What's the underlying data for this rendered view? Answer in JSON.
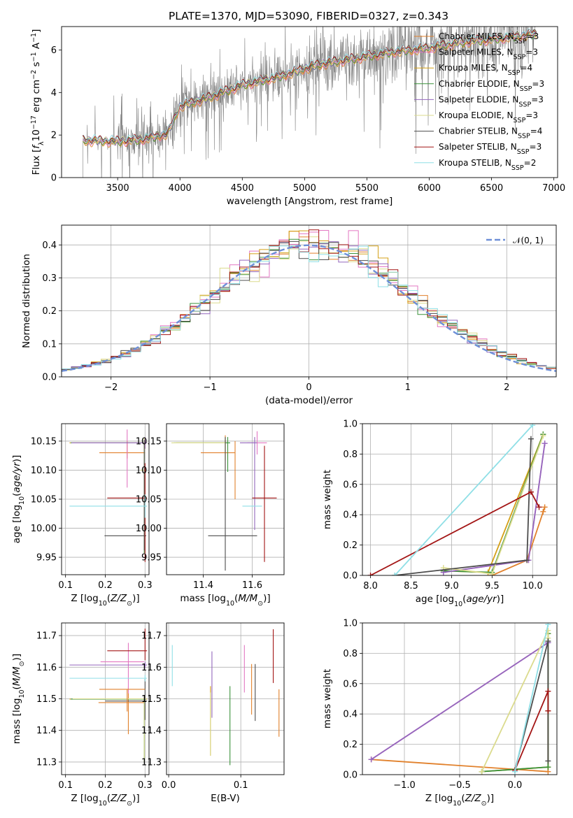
{
  "figure": {
    "title": "PLATE=1370, MJD=53090, FIBERID=0327, z=0.343"
  },
  "colors": {
    "grid": "#b0b0b0",
    "observed": "#808080",
    "models": [
      "#e1812c",
      "#e377c2",
      "#d4a017",
      "#3a923a",
      "#9467bd",
      "#dbdb8d",
      "#4d4d4d",
      "#a31515",
      "#8fdfe6"
    ],
    "normal": "#6e8fd8"
  },
  "chart_data": [
    {
      "id": "spectrum",
      "type": "line",
      "xlabel": "wavelength [Angstrom, rest frame]",
      "ylabel": "Flux [f_λ 10^-17 erg cm^-2 s^-1 A^-1]",
      "xlim": [
        3050,
        7030
      ],
      "ylim": [
        0,
        7.1
      ],
      "xticks": [
        3500,
        4000,
        4500,
        5000,
        5500,
        6000,
        6500,
        7000
      ],
      "yticks": [
        0,
        2,
        4,
        6
      ],
      "grid": false,
      "legend": "top-right",
      "observed_range": [
        3220,
        6860
      ],
      "model_series": [
        {
          "name": "Chabrier MILES, N_SSP=3",
          "label_main": "Chabrier MILES, N",
          "label_sub": "SSP",
          "label_end": "=3"
        },
        {
          "name": "Salpeter MILES, N_SSP=3",
          "label_main": "Salpeter MILES, N",
          "label_sub": "SSP",
          "label_end": "=3"
        },
        {
          "name": "Kroupa MILES, N_SSP=4",
          "label_main": "Kroupa MILES, N",
          "label_sub": "SSP",
          "label_end": "=4"
        },
        {
          "name": "Chabrier ELODIE, N_SSP=3",
          "label_main": "Chabrier ELODIE, N",
          "label_sub": "SSP",
          "label_end": "=3"
        },
        {
          "name": "Salpeter ELODIE, N_SSP=3",
          "label_main": "Salpeter ELODIE, N",
          "label_sub": "SSP",
          "label_end": "=3"
        },
        {
          "name": "Kroupa ELODIE, N_SSP=3",
          "label_main": "Kroupa ELODIE, N",
          "label_sub": "SSP",
          "label_end": "=3"
        },
        {
          "name": "Chabrier STELIB, N_SSP=4",
          "label_main": "Chabrier STELIB, N",
          "label_sub": "SSP",
          "label_end": "=4"
        },
        {
          "name": "Salpeter STELIB, N_SSP=3",
          "label_main": "Salpeter STELIB, N",
          "label_sub": "SSP",
          "label_end": "=3"
        },
        {
          "name": "Kroupa STELIB, N_SSP=2",
          "label_main": "Kroupa STELIB, N",
          "label_sub": "SSP",
          "label_end": "=2"
        }
      ],
      "continuum_knots": [
        [
          3220,
          1.75
        ],
        [
          3500,
          1.7
        ],
        [
          3700,
          1.8
        ],
        [
          3900,
          2.05
        ],
        [
          4000,
          3.35
        ],
        [
          4200,
          3.7
        ],
        [
          4500,
          4.35
        ],
        [
          4800,
          4.75
        ],
        [
          5100,
          5.3
        ],
        [
          5400,
          5.6
        ],
        [
          5700,
          5.9
        ],
        [
          6000,
          6.1
        ],
        [
          6300,
          6.4
        ],
        [
          6500,
          6.5
        ],
        [
          6860,
          6.75
        ]
      ]
    },
    {
      "id": "residual-distribution",
      "type": "line",
      "xlabel": "(data-model)/error",
      "ylabel": "Normed distribution",
      "xlim": [
        -2.5,
        2.5
      ],
      "ylim": [
        0,
        0.46
      ],
      "xticks": [
        -2,
        -1,
        0,
        1,
        2
      ],
      "yticks": [
        0.0,
        0.1,
        0.2,
        0.3,
        0.4
      ],
      "grid": true,
      "legend": "top-right",
      "legend_label": "N(0,1)",
      "legend_script": "𝒩(0, 1)",
      "bin_width": 0.1
    },
    {
      "id": "age-vs-Z",
      "type": "scatter",
      "xlabel": "Z [log10(Z/Z⊙)]",
      "ylabel": "age [log10(age/yr)]",
      "xlim": [
        0.09,
        0.31
      ],
      "ylim": [
        9.92,
        10.18
      ],
      "xticks": [
        0.1,
        0.2,
        0.3
      ],
      "yticks": [
        9.95,
        10.0,
        10.05,
        10.1,
        10.15
      ],
      "grid": true,
      "points": [
        {
          "x": 0.255,
          "y": 10.13,
          "xerr": [
            0.07,
            0.045
          ],
          "yerr": [
            0.01,
            0.02
          ]
        },
        {
          "x": 0.255,
          "y": 10.11,
          "xerr": [
            0.0,
            0.0
          ],
          "yerr": [
            0.04,
            0.06
          ]
        },
        {
          "x": 0.3,
          "y": 10.147,
          "xerr": [
            0.19,
            0.005
          ],
          "yerr": [
            0.01,
            0.01
          ]
        },
        {
          "x": 0.298,
          "y": 10.147,
          "xerr": [
            0.185,
            0.005
          ],
          "yerr": [
            0.19,
            0.008
          ]
        },
        {
          "x": 0.3,
          "y": 10.147,
          "xerr": [
            0.185,
            0.005
          ],
          "yerr": [
            0.01,
            0.01
          ]
        },
        {
          "x": 0.298,
          "y": 10.1,
          "xerr": [
            0.01,
            0.005
          ],
          "yerr": [
            0.12,
            0.055
          ]
        },
        {
          "x": 0.298,
          "y": 9.987,
          "xerr": [
            0.1,
            0.005
          ],
          "yerr": [
            0.025,
            0.165
          ]
        },
        {
          "x": 0.3,
          "y": 10.052,
          "xerr": [
            0.095,
            0.005
          ],
          "yerr": [
            0.11,
            0.06
          ]
        },
        {
          "x": 0.3,
          "y": 10.038,
          "xerr": [
            0.19,
            0.005
          ],
          "yerr": [
            0.02,
            0.02
          ]
        }
      ]
    },
    {
      "id": "age-vs-mass",
      "type": "scatter",
      "xlabel": "mass [log10(M/M⊙)]",
      "ylabel": "",
      "xlim": [
        11.25,
        11.73
      ],
      "ylim": [
        9.92,
        10.18
      ],
      "xticks": [
        11.4,
        11.6
      ],
      "yticks": [
        9.95,
        10.0,
        10.05,
        10.1,
        10.15
      ],
      "grid": true,
      "points": [
        {
          "x": 11.49,
          "y": 10.13,
          "xerr": [
            0.1,
            0.04
          ],
          "yerr": [
            0.03,
            0.03
          ]
        },
        {
          "x": 11.62,
          "y": 10.147,
          "xerr": [
            0.04,
            0.04
          ],
          "yerr": [
            0.02,
            0.02
          ]
        },
        {
          "x": 11.49,
          "y": 10.147,
          "xerr": [
            0.2,
            0.01
          ],
          "yerr": [
            0.03,
            0.01
          ]
        },
        {
          "x": 11.5,
          "y": 10.147,
          "xerr": [
            0.22,
            0.01
          ],
          "yerr": [
            0.05,
            0.01
          ]
        },
        {
          "x": 11.61,
          "y": 10.147,
          "xerr": [
            0.06,
            0.01
          ],
          "yerr": [
            0.15,
            0.01
          ]
        },
        {
          "x": 11.49,
          "y": 10.147,
          "xerr": [
            0.22,
            0.0
          ],
          "yerr": [
            0.03,
            0.01
          ]
        },
        {
          "x": 11.49,
          "y": 9.987,
          "xerr": [
            0.07,
            0.13
          ],
          "yerr": [
            0.06,
            0.17
          ]
        },
        {
          "x": 11.65,
          "y": 10.052,
          "xerr": [
            0.05,
            0.05
          ],
          "yerr": [
            0.11,
            0.09
          ]
        },
        {
          "x": 11.56,
          "y": 10.038,
          "xerr": [
            0.0,
            0.08
          ],
          "yerr": [
            0.0,
            0.0
          ]
        },
        {
          "x": 11.53,
          "y": 10.08,
          "xerr": [
            0.0,
            0.0
          ],
          "yerr": [
            0.03,
            0.07
          ]
        }
      ]
    },
    {
      "id": "mass-weight-vs-age",
      "type": "line",
      "xlabel": "age [log10(age/yr)]",
      "ylabel": "mass weight",
      "xlim": [
        7.9,
        10.3
      ],
      "ylim": [
        0,
        1.0
      ],
      "xticks": [
        8.0,
        8.5,
        9.0,
        9.5,
        10.0
      ],
      "yticks": [
        0.0,
        0.2,
        0.4,
        0.6,
        0.8,
        1.0
      ],
      "grid": true,
      "series": [
        {
          "points": [
            [
              9.5,
              0.0
            ],
            [
              9.93,
              0.1
            ],
            [
              10.15,
              0.45
            ],
            [
              10.13,
              0.42
            ]
          ]
        },
        {
          "points": [
            [
              8.9,
              0.02
            ],
            [
              9.95,
              0.1
            ],
            [
              10.15,
              0.87
            ]
          ]
        },
        {
          "points": [
            [
              8.9,
              0.03
            ],
            [
              9.45,
              0.02
            ],
            [
              10.13,
              0.93
            ]
          ]
        },
        {
          "points": [
            [
              8.9,
              0.03
            ],
            [
              9.5,
              0.02
            ],
            [
              10.13,
              0.93
            ]
          ]
        },
        {
          "points": [
            [
              8.9,
              0.02
            ],
            [
              9.95,
              0.1
            ],
            [
              10.15,
              0.87
            ]
          ]
        },
        {
          "points": [
            [
              8.9,
              0.05
            ],
            [
              9.5,
              0.01
            ],
            [
              10.13,
              0.92
            ]
          ]
        },
        {
          "points": [
            [
              8.3,
              0.0
            ],
            [
              9.93,
              0.1
            ],
            [
              9.98,
              0.9
            ]
          ]
        },
        {
          "points": [
            [
              8.0,
              0.0
            ],
            [
              9.98,
              0.55
            ],
            [
              10.08,
              0.45
            ]
          ]
        },
        {
          "points": [
            [
              8.3,
              0.0
            ],
            [
              10.0,
              0.99
            ]
          ]
        }
      ]
    },
    {
      "id": "mass-vs-Z",
      "type": "scatter",
      "xlabel": "Z [log10(Z/Z⊙)]",
      "ylabel": "mass [log10(M/M⊙)]",
      "xlim": [
        0.09,
        0.31
      ],
      "ylim": [
        11.26,
        11.74
      ],
      "xticks": [
        0.1,
        0.2,
        0.3
      ],
      "yticks": [
        11.3,
        11.4,
        11.5,
        11.6,
        11.7
      ],
      "grid": true,
      "points": [
        {
          "x": 0.258,
          "y": 11.488,
          "xerr": [
            0.075,
            0.04
          ],
          "yerr": [
            0.1,
            0.05
          ]
        },
        {
          "x": 0.258,
          "y": 11.617,
          "xerr": [
            0.07,
            0.04
          ],
          "yerr": [
            0.1,
            0.06
          ]
        },
        {
          "x": 0.3,
          "y": 11.499,
          "xerr": [
            0.19,
            0.005
          ],
          "yerr": [
            0.01,
            0.01
          ]
        },
        {
          "x": 0.298,
          "y": 11.499,
          "xerr": [
            0.185,
            0.005
          ],
          "yerr": [
            0.2,
            0.005
          ]
        },
        {
          "x": 0.3,
          "y": 11.607,
          "xerr": [
            0.19,
            0.005
          ],
          "yerr": [
            0.01,
            0.01
          ]
        },
        {
          "x": 0.298,
          "y": 11.5,
          "xerr": [
            0.18,
            0.005
          ],
          "yerr": [
            0.2,
            0.01
          ]
        },
        {
          "x": 0.3,
          "y": 11.493,
          "xerr": [
            0.1,
            0.005
          ],
          "yerr": [
            0.06,
            0.07
          ]
        },
        {
          "x": 0.3,
          "y": 11.652,
          "xerr": [
            0.095,
            0.005
          ],
          "yerr": [
            0.03,
            0.07
          ]
        },
        {
          "x": 0.3,
          "y": 11.565,
          "xerr": [
            0.19,
            0.005
          ],
          "yerr": [
            0.01,
            0.01
          ]
        },
        {
          "x": 0.255,
          "y": 11.53,
          "xerr": [
            0.07,
            0.045
          ],
          "yerr": [
            0.07,
            0.0
          ]
        }
      ]
    },
    {
      "id": "mass-vs-ebv",
      "type": "scatter",
      "xlabel": "E(B-V)",
      "ylabel": "",
      "xlim": [
        -0.003,
        0.16
      ],
      "ylim": [
        11.26,
        11.74
      ],
      "xticks": [
        0.0,
        0.1
      ],
      "yticks": [
        11.3,
        11.4,
        11.5,
        11.6,
        11.7
      ],
      "grid": true,
      "points": [
        {
          "x": 0.153,
          "y": 11.46,
          "xerr": [
            0,
            0
          ],
          "yerr": [
            0.08,
            0.07
          ]
        },
        {
          "x": 0.105,
          "y": 11.6,
          "xerr": [
            0,
            0
          ],
          "yerr": [
            0.08,
            0.07
          ]
        },
        {
          "x": 0.058,
          "y": 11.42,
          "xerr": [
            0,
            0
          ],
          "yerr": [
            0.1,
            0.12
          ]
        },
        {
          "x": 0.085,
          "y": 11.41,
          "xerr": [
            0,
            0
          ],
          "yerr": [
            0.12,
            0.13
          ]
        },
        {
          "x": 0.06,
          "y": 11.54,
          "xerr": [
            0,
            0
          ],
          "yerr": [
            0.1,
            0.11
          ]
        },
        {
          "x": 0.058,
          "y": 11.42,
          "xerr": [
            0,
            0
          ],
          "yerr": [
            0.1,
            0.1
          ]
        },
        {
          "x": 0.12,
          "y": 11.52,
          "xerr": [
            0,
            0
          ],
          "yerr": [
            0.09,
            0.09
          ]
        },
        {
          "x": 0.145,
          "y": 11.6,
          "xerr": [
            0,
            0
          ],
          "yerr": [
            0.05,
            0.12
          ]
        },
        {
          "x": 0.005,
          "y": 11.61,
          "xerr": [
            0,
            0
          ],
          "yerr": [
            0.07,
            0.06
          ]
        },
        {
          "x": 0.115,
          "y": 11.53,
          "xerr": [
            0,
            0
          ],
          "yerr": [
            0.08,
            0.08
          ]
        }
      ]
    },
    {
      "id": "mass-weight-vs-Z",
      "type": "line",
      "xlabel": "Z [log10(Z/Z⊙)]",
      "ylabel": "mass weight",
      "xlim": [
        -1.38,
        0.38
      ],
      "ylim": [
        0,
        1.0
      ],
      "xticks": [
        -1.0,
        -0.5,
        0.0
      ],
      "yticks": [
        0.0,
        0.2,
        0.4,
        0.6,
        0.8,
        1.0
      ],
      "grid": true,
      "series": [
        {
          "points": [
            [
              -1.3,
              0.1
            ],
            [
              0.3,
              0.02
            ],
            [
              0.3,
              0.42
            ]
          ]
        },
        {
          "points": [
            [
              -1.3,
              0.1
            ],
            [
              0.3,
              0.87
            ],
            [
              0.3,
              0.87
            ]
          ]
        },
        {
          "points": [
            [
              -0.3,
              0.02
            ],
            [
              0.3,
              0.05
            ],
            [
              0.3,
              0.93
            ]
          ]
        },
        {
          "points": [
            [
              -0.3,
              0.02
            ],
            [
              0.3,
              0.05
            ],
            [
              0.3,
              0.93
            ]
          ]
        },
        {
          "points": [
            [
              -1.3,
              0.1
            ],
            [
              0.3,
              0.87
            ],
            [
              0.3,
              0.87
            ]
          ]
        },
        {
          "points": [
            [
              -0.3,
              0.02
            ],
            [
              0.3,
              0.95
            ],
            [
              0.3,
              0.9
            ]
          ]
        },
        {
          "points": [
            [
              0.0,
              0.03
            ],
            [
              0.3,
              0.88
            ],
            [
              0.3,
              0.09
            ]
          ]
        },
        {
          "points": [
            [
              0.0,
              0.03
            ],
            [
              0.3,
              0.55
            ],
            [
              0.3,
              0.42
            ]
          ]
        },
        {
          "points": [
            [
              0.0,
              0.02
            ],
            [
              0.3,
              0.99
            ]
          ]
        }
      ]
    }
  ]
}
